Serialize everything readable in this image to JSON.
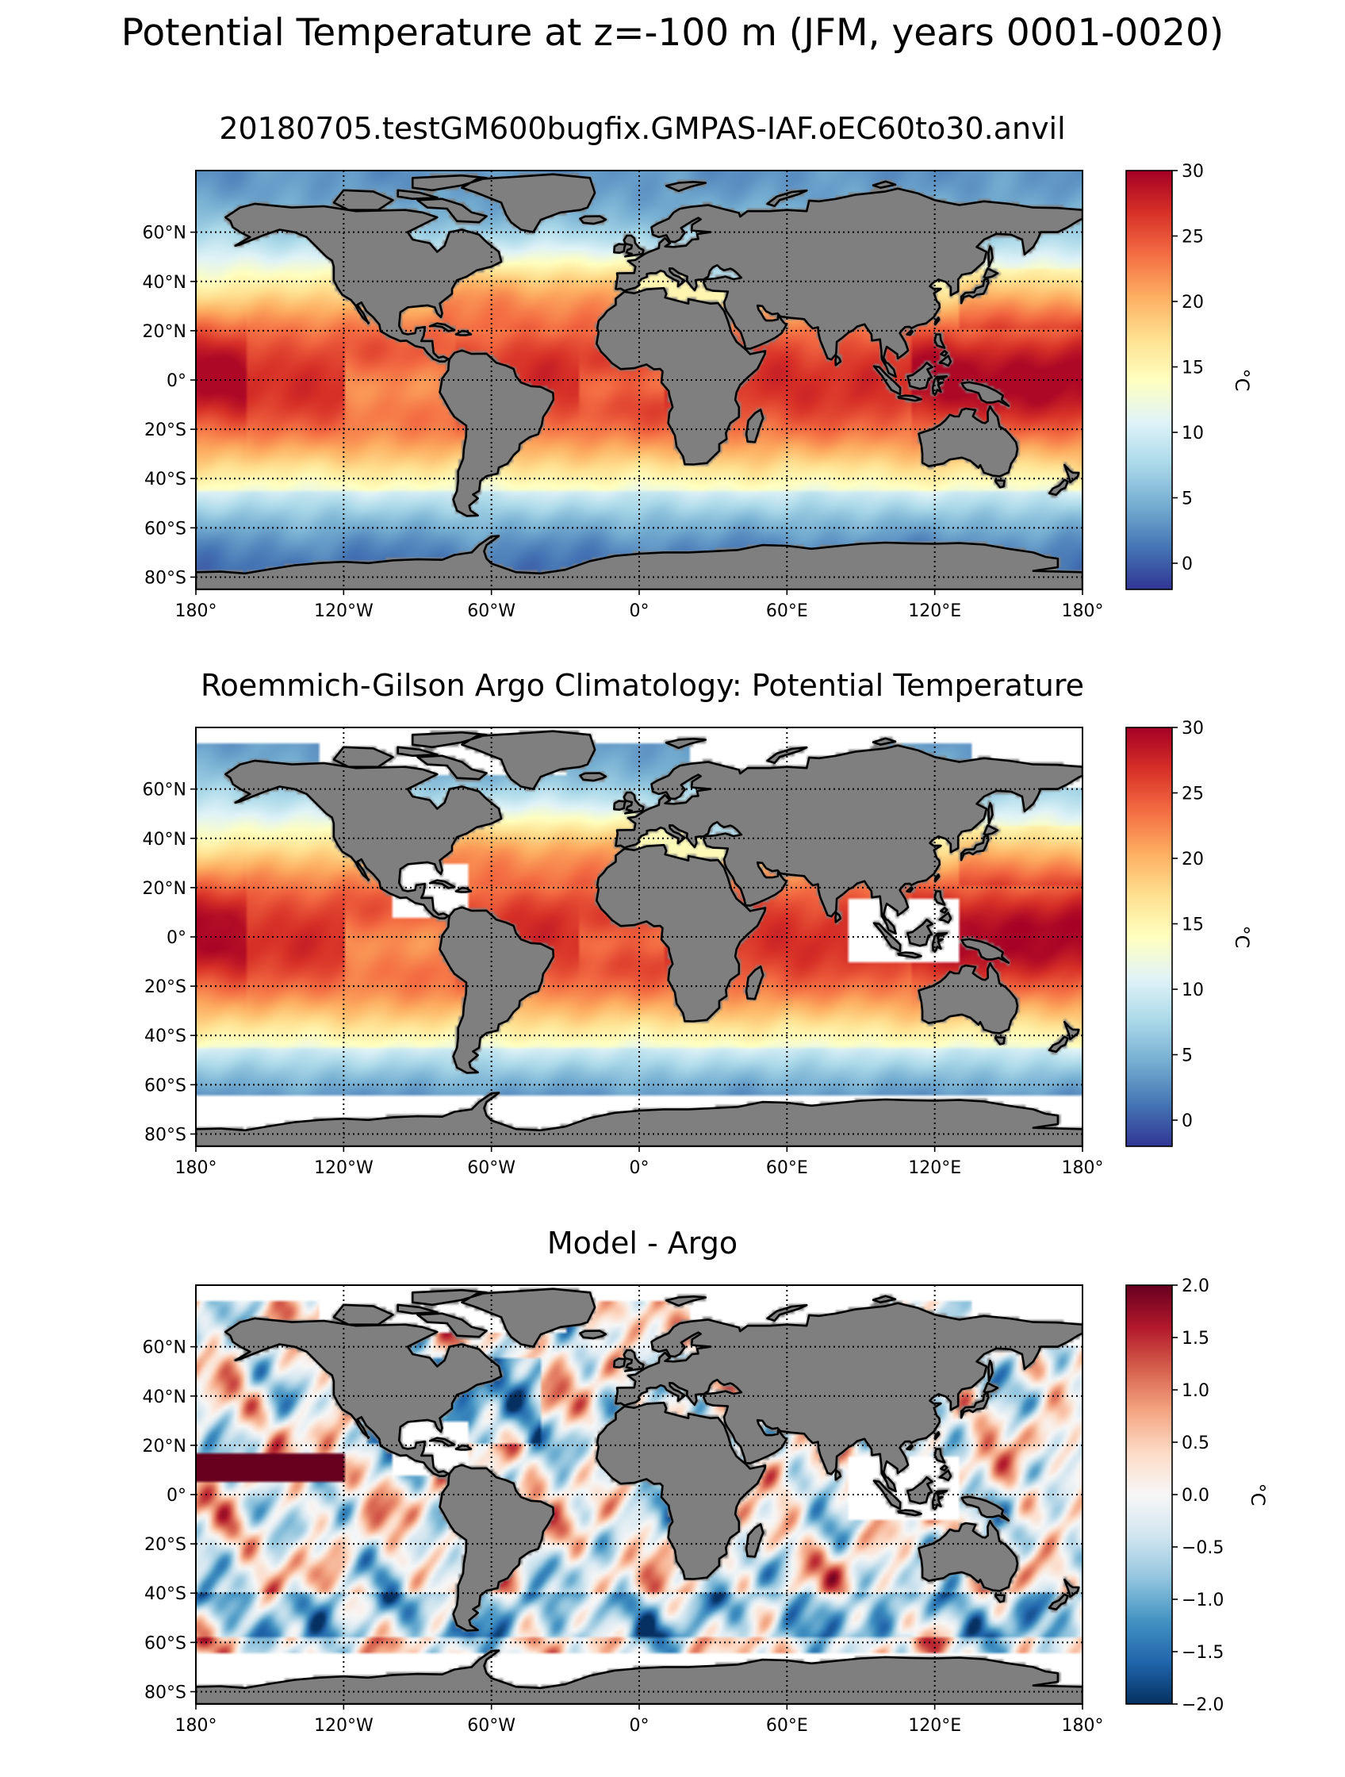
{
  "figure": {
    "title": "Potential Temperature at z=-100 m (JFM, years 0001-0020)"
  },
  "colors": {
    "land": "#7f7f7f",
    "nodata": "#ffffff",
    "coast": "#000000",
    "grid": "#000000"
  },
  "axes": {
    "lon_ticks": [
      "180°",
      "120°W",
      "60°W",
      "0°",
      "60°E",
      "120°E",
      "180°"
    ],
    "lon_values": [
      -180,
      -120,
      -60,
      0,
      60,
      120,
      180
    ],
    "lat_ticks": [
      "60°N",
      "40°N",
      "20°N",
      "0°",
      "20°S",
      "40°S",
      "60°S",
      "80°S"
    ],
    "lat_values": [
      60,
      40,
      20,
      0,
      -20,
      -40,
      -60,
      -80
    ],
    "lon_range": [
      -180,
      180
    ],
    "lat_range": [
      -85,
      85
    ],
    "grid": "dotted"
  },
  "panels": [
    {
      "id": "model",
      "title": "20180705.testGM600bugfix.GMPAS-IAF.oEC60to30.anvil",
      "field": "model",
      "colorbar": {
        "cmap": "RdYlBu_r",
        "range": [
          -2,
          30
        ],
        "ticks": [
          30,
          25,
          20,
          15,
          10,
          5,
          0
        ],
        "tick_labels": [
          "30",
          "25",
          "20",
          "15",
          "10",
          "5",
          "0"
        ],
        "label": "°C"
      }
    },
    {
      "id": "obs",
      "title": "Roemmich-Gilson Argo Climatology: Potential Temperature",
      "field": "obs",
      "colorbar": {
        "cmap": "RdYlBu_r",
        "range": [
          -2,
          30
        ],
        "ticks": [
          30,
          25,
          20,
          15,
          10,
          5,
          0
        ],
        "tick_labels": [
          "30",
          "25",
          "20",
          "15",
          "10",
          "5",
          "0"
        ],
        "label": "°C"
      }
    },
    {
      "id": "bias",
      "title": "Model - Argo",
      "field": "bias",
      "colorbar": {
        "cmap": "RdBu_r",
        "range": [
          -2,
          2
        ],
        "ticks": [
          2.0,
          1.5,
          1.0,
          0.5,
          0.0,
          -0.5,
          -1.0,
          -1.5,
          -2.0
        ],
        "tick_labels": [
          "2.0",
          "1.5",
          "1.0",
          "0.5",
          "0.0",
          "−0.5",
          "−1.0",
          "−1.5",
          "−2.0"
        ],
        "label": "°C"
      }
    }
  ]
}
